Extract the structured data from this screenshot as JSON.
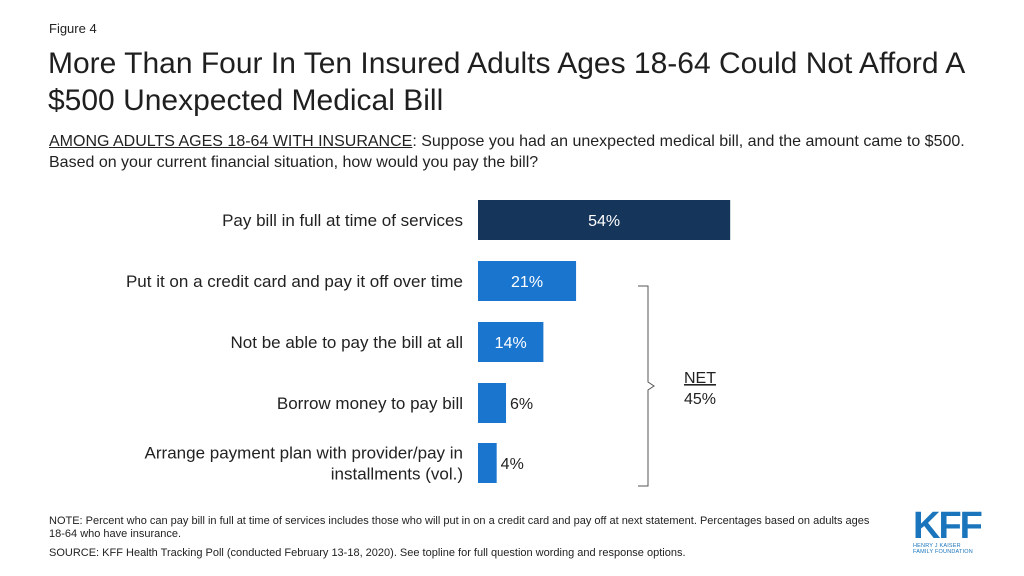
{
  "figure_label": "Figure 4",
  "title": "More Than Four In Ten Insured Adults Ages 18-64 Could Not Afford A $500 Unexpected Medical Bill",
  "subtitle": {
    "lead": "AMONG ADULTS AGES 18-64 WITH INSURANCE",
    "rest": ": Suppose you had an unexpected medical bill, and the amount came to $500. Based on your current financial situation, how would you pay the bill?"
  },
  "chart_data": {
    "type": "bar",
    "orientation": "horizontal",
    "categories": [
      [
        "Pay bill in full at time of services"
      ],
      [
        "Put it on a credit card and pay it off over time"
      ],
      [
        "Not be able to pay the bill at all"
      ],
      [
        "Borrow money to pay bill"
      ],
      [
        "Arrange payment plan with provider/pay in",
        "installments (vol.)"
      ]
    ],
    "values": [
      54,
      21,
      14,
      6,
      4
    ],
    "value_labels": [
      "54%",
      "21%",
      "14%",
      "6%",
      "4%"
    ],
    "bar_colors": [
      "#15355a",
      "#1a75cf",
      "#1a75cf",
      "#1a75cf",
      "#1a75cf"
    ],
    "bracket": {
      "label": "NET",
      "value": "45%",
      "covers": [
        1,
        2,
        3,
        4
      ]
    },
    "xlim": [
      0,
      100
    ]
  },
  "note": "NOTE: Percent who can pay bill in full at time of services includes those who will put in on a credit card and pay off at next statement. Percentages based on adults ages 18-64 who have insurance.",
  "source": "SOURCE: KFF Health Tracking Poll (conducted February 13-18, 2020). See topline for full question wording and response options.",
  "logo": {
    "word": "KFF",
    "line1": "HENRY J KAISER",
    "line2": "FAMILY FOUNDATION"
  }
}
